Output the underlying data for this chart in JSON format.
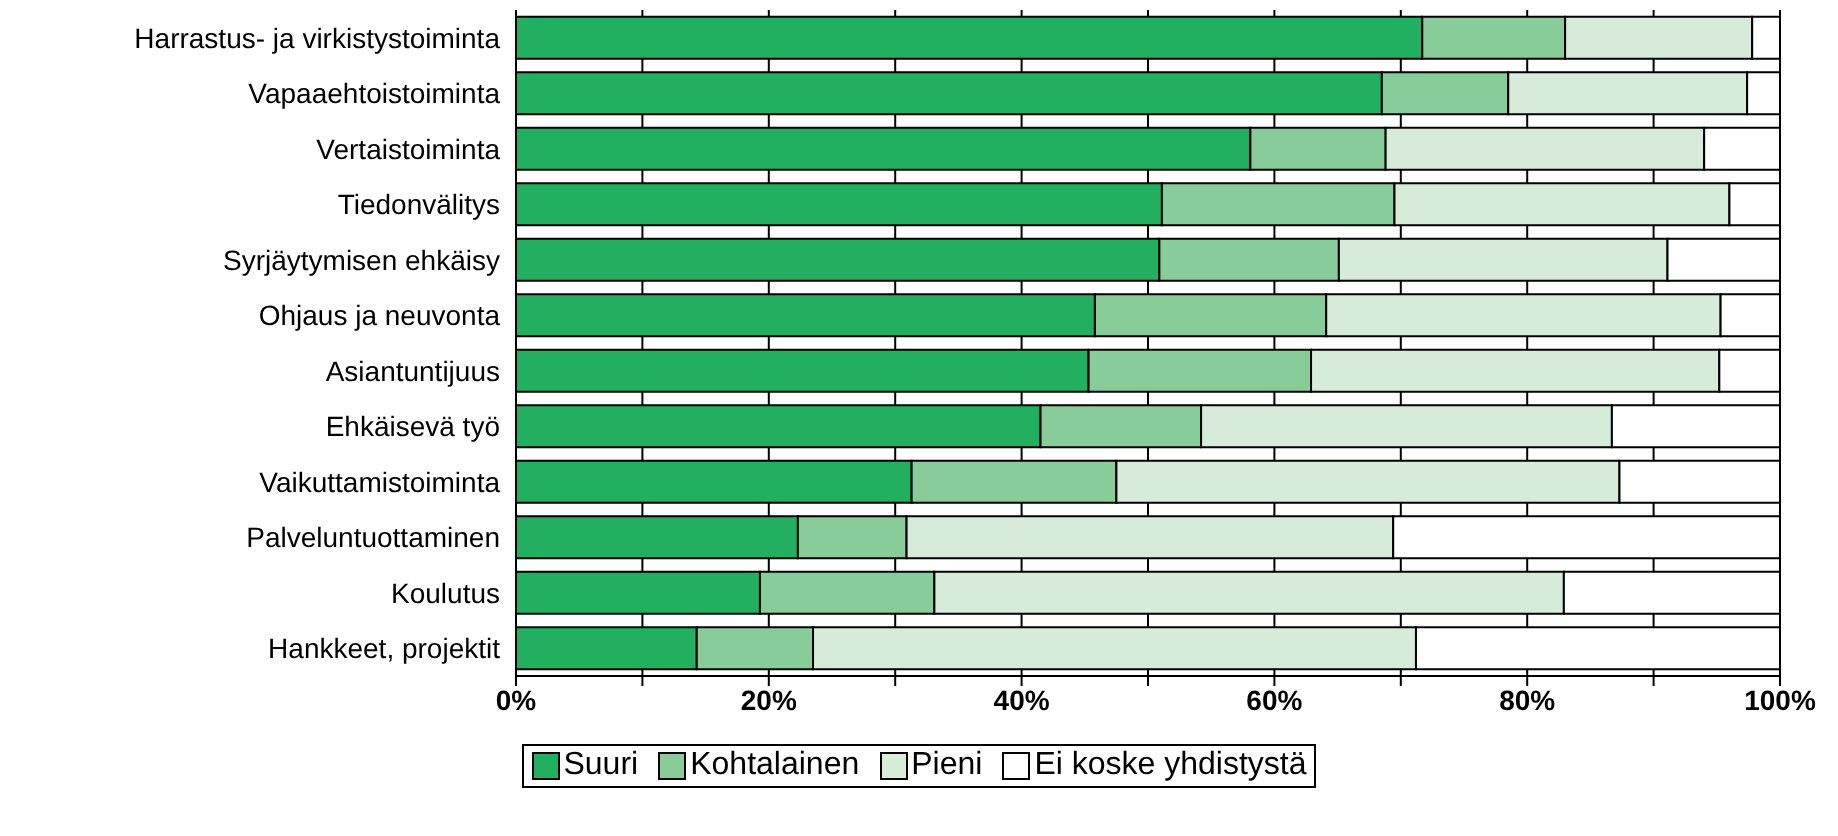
{
  "chart_data": {
    "type": "bar",
    "orientation": "horizontal",
    "stacked": true,
    "categories": [
      "Harrastus- ja virkistystoiminta",
      "Vapaaehtoistoiminta",
      "Vertaistoiminta",
      "Tiedonvälitys",
      "Syrjäytymisen ehkäisy",
      "Ohjaus ja neuvonta",
      "Asiantuntijuus",
      "Ehkäisevä työ",
      "Vaikuttamistoiminta",
      "Palveluntuottaminen",
      "Koulutus",
      "Hankkeet, projektit"
    ],
    "series": [
      {
        "name": "Suuri",
        "color": "#22b060",
        "values": [
          71.7,
          68.5,
          58.1,
          51.1,
          50.9,
          45.8,
          45.3,
          41.5,
          31.3,
          22.3,
          19.3,
          14.3
        ]
      },
      {
        "name": "Kohtalainen",
        "color": "#88cc99",
        "values": [
          11.3,
          10.0,
          10.7,
          18.4,
          14.2,
          18.3,
          17.6,
          12.7,
          16.2,
          8.6,
          13.8,
          9.2
        ]
      },
      {
        "name": "Pieni",
        "color": "#d6ebd8",
        "values": [
          14.8,
          18.9,
          25.2,
          26.5,
          26.0,
          31.2,
          32.3,
          32.5,
          39.8,
          38.5,
          49.8,
          47.7
        ]
      },
      {
        "name": "Ei koske yhdistystä",
        "color": "#ffffff",
        "values": [
          2.2,
          2.6,
          6.0,
          4.0,
          8.9,
          4.7,
          4.8,
          13.3,
          12.7,
          30.6,
          17.1,
          28.8
        ]
      }
    ],
    "xlim": [
      0,
      100
    ],
    "xticks": [
      {
        "value": 0,
        "label": "0%"
      },
      {
        "value": 10,
        "label": null
      },
      {
        "value": 20,
        "label": "20%"
      },
      {
        "value": 30,
        "label": null
      },
      {
        "value": 40,
        "label": "40%"
      },
      {
        "value": 50,
        "label": null
      },
      {
        "value": 60,
        "label": "60%"
      },
      {
        "value": 70,
        "label": null
      },
      {
        "value": 80,
        "label": "80%"
      },
      {
        "value": 90,
        "label": null
      },
      {
        "value": 100,
        "label": "100%"
      }
    ],
    "grid": "x",
    "legend": "bottom"
  }
}
